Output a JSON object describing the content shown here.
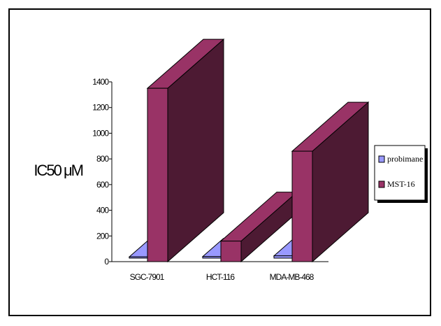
{
  "chart_data": {
    "type": "bar",
    "style": "3d",
    "title": "",
    "xlabel": "",
    "ylabel": "IC50 μM",
    "categories": [
      "SGC-7901",
      "HCT-116",
      "MDA-MB-468"
    ],
    "series": [
      {
        "name": "probimane",
        "color": "#9999ff",
        "values": [
          10,
          12,
          18
        ]
      },
      {
        "name": "MST-16",
        "color": "#993366",
        "values": [
          1350,
          160,
          860
        ]
      }
    ],
    "ylim": [
      0,
      1400
    ],
    "yticks": [
      0,
      200,
      400,
      600,
      800,
      1000,
      1200,
      1400
    ],
    "grid": false,
    "legend": "right"
  }
}
